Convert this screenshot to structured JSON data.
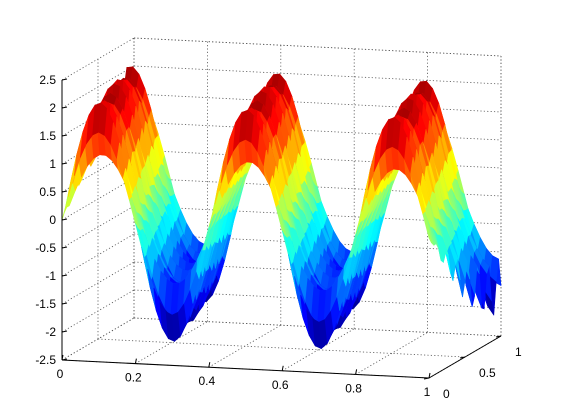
{
  "chart_data": {
    "type": "surface",
    "title": "",
    "xlabel": "",
    "ylabel": "",
    "zlabel": "",
    "x_ticks": [
      "0",
      "0.2",
      "0.4",
      "0.6",
      "0.8",
      "1"
    ],
    "y_ticks": [
      "0",
      "0.5",
      "1"
    ],
    "z_ticks": [
      "-2.5",
      "-2",
      "-1.5",
      "-1",
      "-0.5",
      "0",
      "0.5",
      "1",
      "1.5",
      "2",
      "2.5"
    ],
    "xlim": [
      0,
      1
    ],
    "ylim": [
      0,
      1
    ],
    "zlim": [
      -2.5,
      2.5
    ],
    "grid": true,
    "colormap": "jet",
    "surface": {
      "x_range": [
        0,
        1
      ],
      "y_range": [
        0,
        1
      ],
      "z_expression": "sin(2*pi*2.5*x + 2*pi*y*0.25) * (1.6 + 0.5*sin(2*pi*7*y))",
      "z_range_observed": [
        -2.0,
        2.1
      ]
    }
  }
}
